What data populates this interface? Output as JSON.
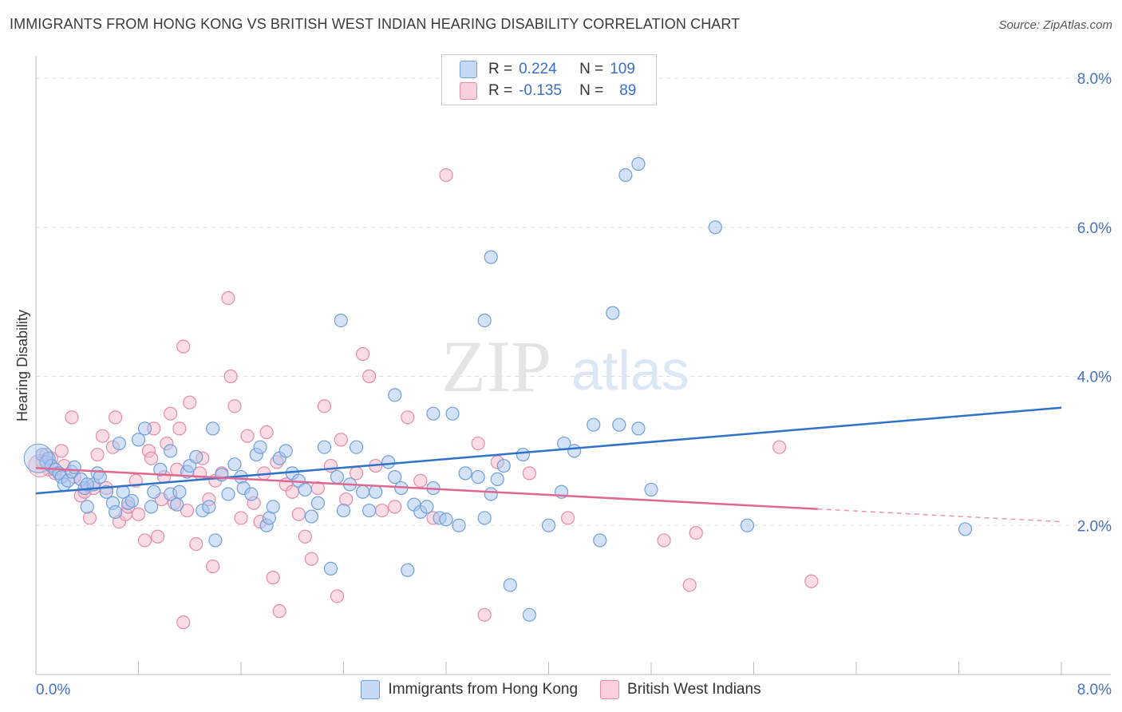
{
  "title": "IMMIGRANTS FROM HONG KONG VS BRITISH WEST INDIAN HEARING DISABILITY CORRELATION CHART",
  "source": "Source: ZipAtlas.com",
  "watermark": {
    "zip": "ZIP",
    "atlas": "atlas"
  },
  "colors": {
    "blue_fill": "#a9c6ef",
    "blue_stroke": "#6f9fd8",
    "blue_line": "#2f72c9",
    "pink_fill": "#f6b9cc",
    "pink_stroke": "#e58aa8",
    "pink_line": "#e0678f",
    "tick_label": "#4472c4",
    "grid": "#dddddd"
  },
  "legend": {
    "rows": [
      {
        "r_label": "R =",
        "r_value": "0.224",
        "n_label": "N =",
        "n_value": "109",
        "color": "blue"
      },
      {
        "r_label": "R =",
        "r_value": "-0.135",
        "n_label": "N =",
        "n_value": "89",
        "color": "pink"
      }
    ]
  },
  "bottom_legend": [
    "Immigrants from Hong Kong",
    "British West Indians"
  ],
  "chart_data": {
    "type": "scatter",
    "ylabel": "Hearing Disability",
    "x_tick_labels": [
      "0.0%",
      "8.0%"
    ],
    "y_tick_labels": [
      "2.0%",
      "4.0%",
      "6.0%",
      "8.0%"
    ],
    "y_ticks": [
      2,
      4,
      6,
      8
    ],
    "xlim": [
      0,
      8
    ],
    "ylim": [
      0,
      8.3
    ],
    "grid": true,
    "legend_position": "top-center",
    "series": [
      {
        "name": "Immigrants from Hong Kong",
        "color": "blue",
        "trend": {
          "x": [
            0,
            8
          ],
          "y": [
            2.43,
            3.58
          ]
        },
        "points": [
          [
            0.05,
            2.95
          ],
          [
            0.08,
            2.85
          ],
          [
            0.1,
            2.9
          ],
          [
            0.12,
            2.8
          ],
          [
            0.15,
            2.75
          ],
          [
            0.18,
            2.7
          ],
          [
            0.2,
            2.65
          ],
          [
            0.22,
            2.55
          ],
          [
            0.25,
            2.6
          ],
          [
            0.28,
            2.72
          ],
          [
            0.3,
            2.78
          ],
          [
            0.35,
            2.62
          ],
          [
            0.38,
            2.5
          ],
          [
            0.4,
            2.25
          ],
          [
            0.45,
            2.55
          ],
          [
            0.48,
            2.7
          ],
          [
            0.5,
            2.65
          ],
          [
            0.55,
            2.45
          ],
          [
            0.6,
            2.3
          ],
          [
            0.62,
            2.18
          ],
          [
            0.68,
            2.45
          ],
          [
            0.72,
            2.3
          ],
          [
            0.75,
            2.33
          ],
          [
            0.8,
            3.15
          ],
          [
            0.85,
            3.3
          ],
          [
            0.92,
            2.45
          ],
          [
            0.97,
            2.75
          ],
          [
            1.05,
            2.42
          ],
          [
            1.1,
            2.28
          ],
          [
            1.12,
            2.45
          ],
          [
            1.18,
            2.72
          ],
          [
            1.2,
            2.8
          ],
          [
            1.25,
            2.92
          ],
          [
            1.3,
            2.2
          ],
          [
            1.35,
            2.25
          ],
          [
            1.38,
            3.3
          ],
          [
            1.4,
            1.8
          ],
          [
            1.45,
            2.68
          ],
          [
            1.5,
            2.42
          ],
          [
            1.55,
            2.82
          ],
          [
            1.6,
            2.65
          ],
          [
            1.62,
            2.5
          ],
          [
            1.68,
            2.42
          ],
          [
            1.72,
            2.95
          ],
          [
            1.75,
            3.05
          ],
          [
            1.8,
            2.0
          ],
          [
            1.82,
            2.1
          ],
          [
            1.85,
            2.25
          ],
          [
            1.9,
            2.9
          ],
          [
            1.95,
            3.0
          ],
          [
            2.0,
            2.7
          ],
          [
            2.05,
            2.6
          ],
          [
            2.1,
            2.48
          ],
          [
            2.15,
            2.12
          ],
          [
            2.2,
            2.3
          ],
          [
            2.25,
            3.05
          ],
          [
            2.3,
            1.42
          ],
          [
            2.35,
            2.65
          ],
          [
            2.4,
            2.2
          ],
          [
            2.45,
            2.55
          ],
          [
            2.5,
            3.05
          ],
          [
            2.55,
            2.45
          ],
          [
            2.6,
            2.2
          ],
          [
            2.65,
            2.45
          ],
          [
            2.75,
            2.85
          ],
          [
            2.8,
            2.65
          ],
          [
            2.85,
            2.5
          ],
          [
            2.9,
            1.4
          ],
          [
            2.95,
            2.28
          ],
          [
            3.0,
            2.18
          ],
          [
            3.05,
            2.25
          ],
          [
            3.1,
            2.5
          ],
          [
            3.15,
            2.1
          ],
          [
            3.2,
            2.08
          ],
          [
            3.25,
            3.5
          ],
          [
            3.3,
            2.0
          ],
          [
            3.35,
            2.7
          ],
          [
            3.45,
            2.65
          ],
          [
            3.5,
            2.1
          ],
          [
            3.55,
            2.42
          ],
          [
            3.6,
            2.62
          ],
          [
            3.65,
            2.8
          ],
          [
            3.7,
            1.2
          ],
          [
            3.8,
            2.95
          ],
          [
            4.0,
            2.0
          ],
          [
            4.1,
            2.45
          ],
          [
            4.2,
            3.0
          ],
          [
            4.4,
            1.8
          ],
          [
            4.8,
            2.48
          ],
          [
            4.7,
            3.3
          ],
          [
            2.38,
            4.75
          ],
          [
            3.5,
            4.75
          ],
          [
            4.5,
            4.85
          ],
          [
            3.55,
            5.6
          ],
          [
            4.6,
            6.7
          ],
          [
            4.7,
            6.85
          ],
          [
            5.3,
            6.0
          ],
          [
            5.55,
            2.0
          ],
          [
            7.25,
            1.95
          ],
          [
            4.12,
            3.1
          ],
          [
            4.35,
            3.35
          ],
          [
            2.8,
            3.75
          ],
          [
            3.1,
            3.5
          ],
          [
            4.55,
            3.35
          ],
          [
            1.05,
            3.0
          ],
          [
            0.65,
            3.1
          ],
          [
            0.4,
            2.55
          ],
          [
            3.85,
            0.8
          ],
          [
            0.9,
            2.25
          ]
        ]
      },
      {
        "name": "British West Indians",
        "color": "pink",
        "trend": {
          "x": [
            0,
            6.1
          ],
          "y": [
            2.77,
            2.22
          ]
        },
        "trend_dashed": {
          "x": [
            6.1,
            8
          ],
          "y": [
            2.22,
            2.05
          ]
        },
        "points": [
          [
            0.05,
            2.85
          ],
          [
            0.08,
            2.95
          ],
          [
            0.1,
            2.75
          ],
          [
            0.12,
            2.9
          ],
          [
            0.15,
            2.7
          ],
          [
            0.2,
            3.0
          ],
          [
            0.22,
            2.8
          ],
          [
            0.28,
            3.45
          ],
          [
            0.3,
            2.65
          ],
          [
            0.35,
            2.4
          ],
          [
            0.38,
            2.45
          ],
          [
            0.42,
            2.1
          ],
          [
            0.45,
            2.5
          ],
          [
            0.48,
            2.95
          ],
          [
            0.52,
            3.2
          ],
          [
            0.55,
            2.5
          ],
          [
            0.6,
            3.05
          ],
          [
            0.62,
            3.45
          ],
          [
            0.65,
            2.05
          ],
          [
            0.7,
            2.15
          ],
          [
            0.72,
            2.25
          ],
          [
            0.78,
            2.6
          ],
          [
            0.8,
            2.15
          ],
          [
            0.85,
            1.8
          ],
          [
            0.88,
            3.0
          ],
          [
            0.9,
            2.9
          ],
          [
            0.92,
            3.3
          ],
          [
            0.95,
            1.85
          ],
          [
            0.98,
            2.35
          ],
          [
            1.0,
            2.65
          ],
          [
            1.02,
            3.1
          ],
          [
            1.05,
            3.5
          ],
          [
            1.08,
            2.3
          ],
          [
            1.1,
            2.75
          ],
          [
            1.12,
            3.3
          ],
          [
            1.15,
            4.4
          ],
          [
            1.18,
            2.2
          ],
          [
            1.2,
            3.65
          ],
          [
            1.25,
            1.75
          ],
          [
            1.28,
            2.7
          ],
          [
            1.3,
            2.9
          ],
          [
            1.35,
            2.35
          ],
          [
            1.38,
            1.45
          ],
          [
            1.4,
            2.6
          ],
          [
            1.45,
            2.7
          ],
          [
            1.5,
            5.05
          ],
          [
            1.52,
            4.0
          ],
          [
            1.55,
            3.6
          ],
          [
            1.6,
            2.1
          ],
          [
            1.65,
            3.2
          ],
          [
            1.7,
            2.3
          ],
          [
            1.75,
            2.05
          ],
          [
            1.78,
            2.7
          ],
          [
            1.8,
            3.25
          ],
          [
            1.85,
            1.3
          ],
          [
            1.88,
            2.85
          ],
          [
            1.9,
            0.85
          ],
          [
            1.95,
            2.55
          ],
          [
            2.0,
            2.45
          ],
          [
            2.05,
            2.15
          ],
          [
            2.1,
            1.85
          ],
          [
            2.15,
            1.55
          ],
          [
            2.2,
            2.5
          ],
          [
            2.25,
            3.6
          ],
          [
            2.3,
            2.8
          ],
          [
            2.35,
            1.05
          ],
          [
            2.38,
            3.15
          ],
          [
            2.42,
            2.35
          ],
          [
            2.5,
            2.7
          ],
          [
            2.55,
            4.3
          ],
          [
            2.6,
            4.0
          ],
          [
            2.65,
            2.8
          ],
          [
            2.7,
            2.2
          ],
          [
            2.8,
            2.25
          ],
          [
            2.9,
            3.45
          ],
          [
            3.0,
            2.6
          ],
          [
            3.1,
            2.1
          ],
          [
            3.2,
            6.7
          ],
          [
            3.45,
            3.1
          ],
          [
            3.5,
            0.8
          ],
          [
            3.6,
            2.85
          ],
          [
            3.85,
            2.7
          ],
          [
            4.15,
            2.1
          ],
          [
            4.9,
            1.8
          ],
          [
            5.1,
            1.2
          ],
          [
            5.15,
            1.9
          ],
          [
            5.8,
            3.05
          ],
          [
            6.05,
            1.25
          ],
          [
            1.15,
            0.7
          ]
        ]
      }
    ]
  }
}
